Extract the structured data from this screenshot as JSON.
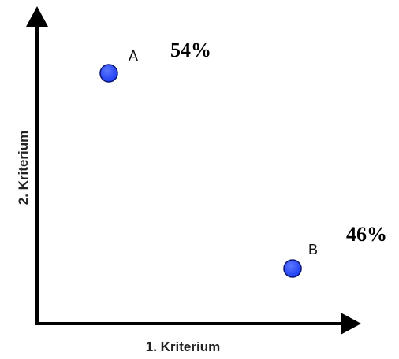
{
  "axes": {
    "x_label": "1. Kriterium",
    "y_label": "2. Kriterium",
    "line_color": "#000000"
  },
  "points": [
    {
      "id": "A",
      "label": "A",
      "percent": "54%"
    },
    {
      "id": "B",
      "label": "B",
      "percent": "46%"
    }
  ],
  "colors": {
    "point_fill": "#1f3df2",
    "point_stroke": "#0a1470"
  }
}
